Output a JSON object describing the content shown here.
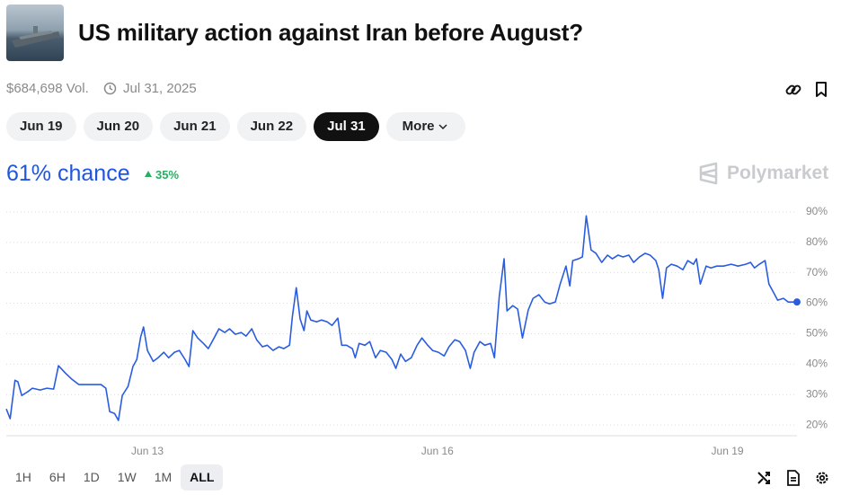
{
  "header": {
    "title": "US military action against Iran before August?",
    "volume": "$684,698 Vol.",
    "end_date": "Jul 31, 2025"
  },
  "tabs": [
    "Jun 19",
    "Jun 20",
    "Jun 21",
    "Jun 22",
    "Jul 31"
  ],
  "more": "More",
  "chance": "61% chance",
  "change": "35%",
  "brand": "Polymarket",
  "timeframes": [
    "1H",
    "6H",
    "1D",
    "1W",
    "1M",
    "ALL"
  ],
  "chart_data": {
    "type": "line",
    "color": "#2a5ce0",
    "grid": true,
    "x": [
      11.54,
      11.58,
      11.63,
      11.66,
      11.7,
      11.76,
      11.81,
      11.89,
      11.96,
      12.03,
      12.08,
      12.15,
      12.22,
      12.29,
      12.41,
      12.52,
      12.57,
      12.61,
      12.66,
      12.7,
      12.74,
      12.8,
      12.85,
      12.89,
      12.93,
      12.96,
      13.0,
      13.06,
      13.11,
      13.17,
      13.22,
      13.28,
      13.33,
      13.39,
      13.43,
      13.47,
      13.52,
      13.58,
      13.63,
      13.69,
      13.74,
      13.8,
      13.85,
      13.91,
      13.97,
      14.02,
      14.08,
      14.13,
      14.19,
      14.24,
      14.3,
      14.36,
      14.41,
      14.47,
      14.5,
      14.54,
      14.58,
      14.62,
      14.65,
      14.69,
      14.75,
      14.8,
      14.86,
      14.91,
      14.97,
      15.01,
      15.06,
      15.12,
      15.15,
      15.19,
      15.25,
      15.3,
      15.36,
      15.41,
      15.47,
      15.53,
      15.57,
      15.62,
      15.67,
      15.73,
      15.79,
      15.84,
      15.9,
      15.95,
      16.01,
      16.07,
      16.12,
      16.18,
      16.23,
      16.29,
      16.34,
      16.38,
      16.44,
      16.49,
      16.55,
      16.59,
      16.64,
      16.69,
      16.72,
      16.78,
      16.83,
      16.88,
      16.94,
      16.99,
      17.05,
      17.11,
      17.16,
      17.22,
      17.27,
      17.33,
      17.37,
      17.4,
      17.46,
      17.5,
      17.54,
      17.59,
      17.64,
      17.7,
      17.76,
      17.81,
      17.87,
      17.92,
      17.98,
      18.03,
      18.09,
      18.15,
      18.2,
      18.26,
      18.29,
      18.33,
      18.37,
      18.42,
      18.48,
      18.54,
      18.59,
      18.65,
      18.68,
      18.72,
      18.78,
      18.83,
      18.89,
      18.96,
      19.04,
      19.11,
      19.19,
      19.24,
      19.28,
      19.33,
      19.39,
      19.43,
      19.48,
      19.52,
      19.58,
      19.63,
      19.72
    ],
    "values": [
      25.3,
      22.1,
      34.7,
      34.2,
      29.7,
      30.9,
      32.1,
      31.5,
      32.1,
      31.8,
      39.5,
      37.1,
      35.0,
      33.3,
      33.3,
      33.3,
      32.1,
      24.4,
      23.8,
      21.5,
      29.7,
      32.7,
      39.2,
      41.5,
      48.9,
      52.2,
      44.5,
      40.9,
      42.1,
      43.9,
      42.1,
      43.9,
      44.5,
      41.5,
      39.2,
      51.0,
      48.6,
      46.8,
      45.1,
      48.6,
      51.6,
      50.4,
      51.6,
      49.8,
      50.4,
      49.2,
      51.6,
      48.0,
      45.7,
      46.2,
      44.5,
      45.7,
      45.1,
      46.2,
      55.7,
      65.1,
      54.8,
      51.0,
      57.5,
      54.5,
      53.9,
      54.5,
      53.9,
      52.7,
      55.1,
      46.2,
      46.2,
      45.1,
      42.1,
      46.8,
      46.2,
      47.4,
      42.1,
      44.5,
      43.9,
      41.5,
      38.6,
      43.3,
      40.9,
      42.1,
      46.2,
      48.6,
      46.2,
      44.5,
      43.9,
      42.7,
      45.7,
      48.0,
      47.4,
      44.5,
      38.6,
      43.9,
      47.4,
      46.2,
      46.8,
      42.1,
      62.2,
      74.6,
      57.5,
      59.2,
      58.1,
      48.6,
      57.8,
      61.6,
      62.8,
      60.4,
      59.8,
      60.4,
      66.3,
      72.2,
      65.7,
      74.0,
      74.6,
      75.2,
      88.7,
      77.5,
      76.4,
      73.4,
      75.8,
      74.6,
      75.8,
      75.2,
      75.8,
      73.4,
      75.2,
      76.4,
      75.8,
      74.0,
      71.0,
      61.6,
      71.6,
      72.8,
      72.2,
      71.0,
      74.0,
      72.8,
      74.6,
      66.3,
      72.2,
      71.6,
      72.2,
      72.2,
      72.8,
      72.2,
      72.8,
      73.4,
      71.6,
      72.8,
      74.0,
      66.3,
      63.4,
      61.0,
      61.6,
      60.4,
      60.4
    ],
    "xlim": [
      11.54,
      19.72
    ],
    "ylim": [
      16.5,
      93.2
    ],
    "xticks": [
      {
        "value": 13,
        "label": "Jun 13"
      },
      {
        "value": 16,
        "label": "Jun 16"
      },
      {
        "value": 19,
        "label": "Jun 19"
      }
    ],
    "yticks": [
      {
        "value": 20,
        "label": "20%"
      },
      {
        "value": 30,
        "label": "30%"
      },
      {
        "value": 40,
        "label": "40%"
      },
      {
        "value": 50,
        "label": "50%"
      },
      {
        "value": 60,
        "label": "60%"
      },
      {
        "value": 70,
        "label": "70%"
      },
      {
        "value": 80,
        "label": "80%"
      },
      {
        "value": 90,
        "label": "90%"
      }
    ]
  }
}
